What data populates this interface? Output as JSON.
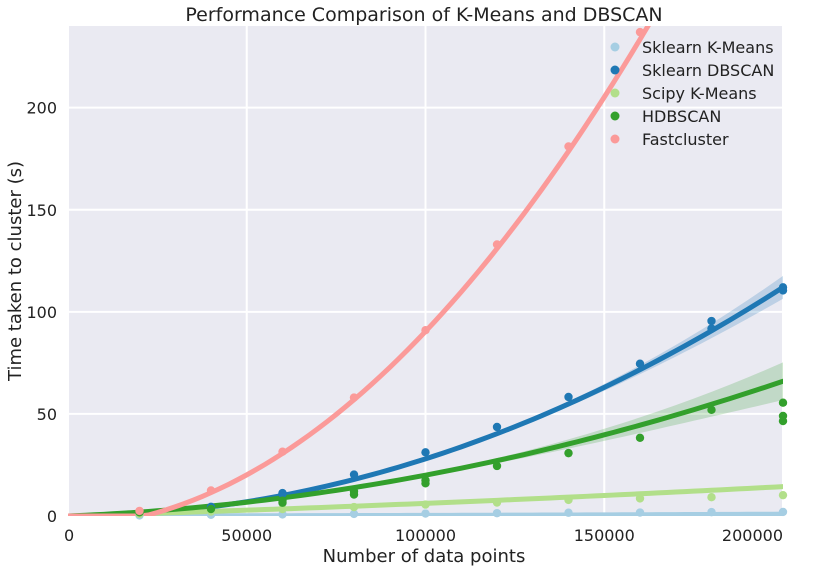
{
  "chart_data": {
    "type": "scatter",
    "title": "Performance Comparison of K-Means and DBSCAN",
    "xlabel": "Number of data points",
    "ylabel": "Time taken to cluster (s)",
    "xlim": [
      0,
      200000
    ],
    "ylim": [
      0,
      240
    ],
    "xticks": [
      0,
      50000,
      100000,
      150000,
      200000
    ],
    "xtick_labels": [
      "0",
      "50000",
      "100000",
      "150000",
      "200000"
    ],
    "yticks": [
      0,
      50,
      100,
      150,
      200
    ],
    "ytick_labels": [
      "0",
      "50",
      "100",
      "150",
      "200"
    ],
    "grid": true,
    "legend_position": "top-right",
    "background": "#eaeaf2",
    "series": [
      {
        "name": "Sklearn K-Means",
        "color": "#a6cee3",
        "fit": [
          0,
          1.5e-06,
          1.5e-11
        ],
        "points": [
          [
            20000,
            0.3
          ],
          [
            40000,
            0.6
          ],
          [
            60000,
            0.8
          ],
          [
            80000,
            1.0
          ],
          [
            100000,
            1.2
          ],
          [
            120000,
            1.4
          ],
          [
            140000,
            1.6
          ],
          [
            160000,
            1.7
          ],
          [
            180000,
            1.9
          ],
          [
            200000,
            2.0
          ]
        ]
      },
      {
        "name": "Sklearn DBSCAN",
        "color": "#1f78b4",
        "fit": [
          0,
          0,
          2.8e-09
        ],
        "band": 0.05,
        "points": [
          [
            20000,
            1.2
          ],
          [
            40000,
            4.5
          ],
          [
            60000,
            10.8
          ],
          [
            60000,
            11.2
          ],
          [
            80000,
            20.3
          ],
          [
            100000,
            31.2
          ],
          [
            120000,
            43.6
          ],
          [
            140000,
            58.3
          ],
          [
            160000,
            74.6
          ],
          [
            180000,
            91.8
          ],
          [
            180000,
            95.5
          ],
          [
            200000,
            110.5
          ],
          [
            200000,
            112.0
          ]
        ]
      },
      {
        "name": "Scipy K-Means",
        "color": "#b2df8a",
        "fit": [
          0,
          5.2e-05,
          1e-10
        ],
        "points": [
          [
            20000,
            1.0
          ],
          [
            40000,
            2.2
          ],
          [
            60000,
            3.4
          ],
          [
            80000,
            4.4
          ],
          [
            100000,
            5.6
          ],
          [
            120000,
            6.6
          ],
          [
            140000,
            7.9
          ],
          [
            160000,
            8.6
          ],
          [
            180000,
            9.2
          ],
          [
            200000,
            10.2
          ]
        ]
      },
      {
        "name": "HDBSCAN",
        "color": "#33a02c",
        "fit": [
          0,
          7e-05,
          1.3e-09
        ],
        "band": 0.14,
        "points": [
          [
            20000,
            1.8
          ],
          [
            40000,
            3.4
          ],
          [
            60000,
            6.5
          ],
          [
            60000,
            7.5
          ],
          [
            80000,
            10.5
          ],
          [
            80000,
            12.0
          ],
          [
            100000,
            16.0
          ],
          [
            100000,
            17.5
          ],
          [
            120000,
            24.5
          ],
          [
            140000,
            30.8
          ],
          [
            160000,
            38.3
          ],
          [
            180000,
            52.0
          ],
          [
            200000,
            46.5
          ],
          [
            200000,
            49.0
          ],
          [
            200000,
            55.5
          ]
        ]
      },
      {
        "name": "Fastcluster",
        "color": "#fb9a99",
        "fit": [
          -5.6,
          7e-05,
          8.9e-09
        ],
        "points": [
          [
            20000,
            2.5
          ],
          [
            40000,
            12.5
          ],
          [
            60000,
            31.5
          ],
          [
            80000,
            58.0
          ],
          [
            100000,
            91.0
          ],
          [
            120000,
            133.0
          ],
          [
            140000,
            181.0
          ],
          [
            160000,
            237.0
          ]
        ]
      }
    ]
  }
}
